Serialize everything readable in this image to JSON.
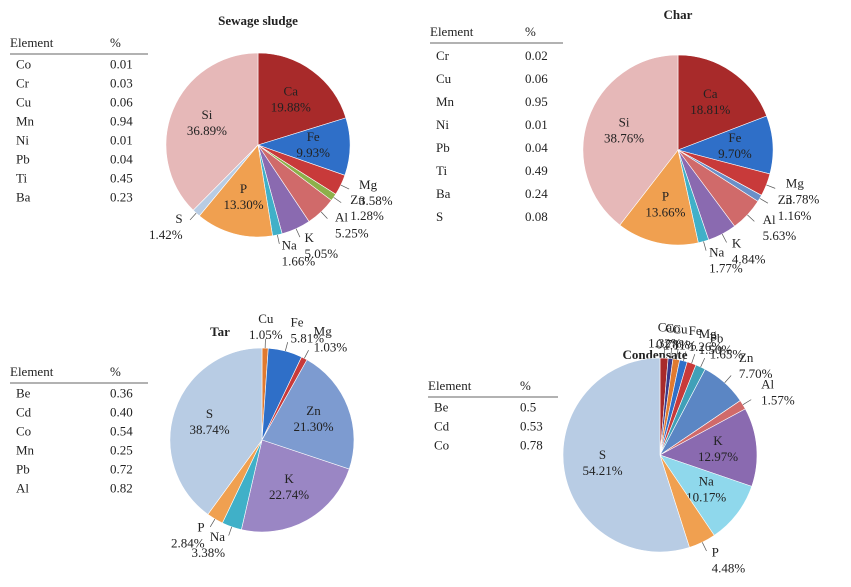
{
  "chart_data": [
    {
      "type": "pie",
      "title": "Sewage sludge",
      "categories": [
        "Ca",
        "Fe",
        "Mg",
        "Zn",
        "Al",
        "K",
        "Na",
        "P",
        "S",
        "Si"
      ],
      "values": [
        19.88,
        9.93,
        3.58,
        1.28,
        5.25,
        5.05,
        1.66,
        13.3,
        1.42,
        36.89
      ],
      "value_labels": [
        "19.88%",
        "9.93%",
        "3.58%",
        "1.28%",
        "5.25%",
        "5.05%",
        "1.66%",
        "13.30%",
        "1.42%",
        "36.89%"
      ],
      "colors": [
        "#a82a2a",
        "#2f6fc8",
        "#c83a3a",
        "#8db04a",
        "#d06a6a",
        "#8a6ab0",
        "#40b0c8",
        "#f0a050",
        "#b8cce4",
        "#e6b8b8"
      ],
      "table": {
        "header": [
          "Element",
          "%"
        ],
        "rows": [
          [
            "Co",
            "0.01"
          ],
          [
            "Cr",
            "0.03"
          ],
          [
            "Cu",
            "0.06"
          ],
          [
            "Mn",
            "0.94"
          ],
          [
            "Ni",
            "0.01"
          ],
          [
            "Pb",
            "0.04"
          ],
          [
            "Ti",
            "0.45"
          ],
          [
            "Ba",
            "0.23"
          ]
        ]
      }
    },
    {
      "type": "pie",
      "title": "Char",
      "categories": [
        "Ca",
        "Fe",
        "Mg",
        "Zn",
        "Al",
        "K",
        "Na",
        "P",
        "Si"
      ],
      "values": [
        18.81,
        9.7,
        3.78,
        1.16,
        5.63,
        4.84,
        1.77,
        13.66,
        38.76
      ],
      "value_labels": [
        "18.81%",
        "9.70%",
        "3.78%",
        "1.16%",
        "5.63%",
        "4.84%",
        "1.77%",
        "13.66%",
        "38.76%"
      ],
      "colors": [
        "#a82a2a",
        "#2f6fc8",
        "#c83a3a",
        "#6a8fc8",
        "#d06a6a",
        "#8a6ab0",
        "#40b0c8",
        "#f0a050",
        "#e6b8b8"
      ],
      "table": {
        "header": [
          "Element",
          "%"
        ],
        "rows": [
          [
            "Cr",
            "0.02"
          ],
          [
            "Cu",
            "0.06"
          ],
          [
            "Mn",
            "0.95"
          ],
          [
            "Ni",
            "0.01"
          ],
          [
            "Pb",
            "0.04"
          ],
          [
            "Ti",
            "0.49"
          ],
          [
            "Ba",
            "0.24"
          ],
          [
            "S",
            "0.08"
          ]
        ]
      }
    },
    {
      "type": "pie",
      "title": "Tar",
      "categories": [
        "Cu",
        "Fe",
        "Mg",
        "Zn",
        "K",
        "Na",
        "P",
        "S"
      ],
      "values": [
        1.05,
        5.81,
        1.03,
        21.3,
        22.74,
        3.38,
        2.84,
        38.74
      ],
      "value_labels": [
        "1.05%",
        "5.81%",
        "1.03%",
        "21.30%",
        "22.74%",
        "3.38%",
        "2.84%",
        "38.74%"
      ],
      "colors": [
        "#e07a30",
        "#2f6fc8",
        "#c83a3a",
        "#7d9bd0",
        "#9a86c4",
        "#40b0c8",
        "#f0a050",
        "#b8cce4"
      ],
      "table": {
        "header": [
          "Element",
          "%"
        ],
        "rows": [
          [
            "Be",
            "0.36"
          ],
          [
            "Cd",
            "0.40"
          ],
          [
            "Co",
            "0.54"
          ],
          [
            "Mn",
            "0.25"
          ],
          [
            "Pb",
            "0.72"
          ],
          [
            "Al",
            "0.82"
          ]
        ]
      }
    },
    {
      "type": "pie",
      "title": "Condensate",
      "categories": [
        "Ca",
        "Co",
        "Cu",
        "Fe",
        "Mg",
        "Pb",
        "Zn",
        "Al",
        "K",
        "Na",
        "P",
        "S"
      ],
      "values": [
        1.32,
        0.78,
        1.11,
        1.26,
        1.5,
        1.65,
        7.7,
        1.57,
        12.97,
        10.17,
        4.48,
        54.21
      ],
      "value_labels": [
        "1.32%",
        "0.78%",
        "1.11%",
        "1.26%",
        "1.50%",
        "1.65%",
        "7.70%",
        "1.57%",
        "12.97%",
        "10.17%",
        "4.48%",
        "54.21%"
      ],
      "colors": [
        "#a82a2a",
        "#3a3a8a",
        "#e07a30",
        "#2f6fc8",
        "#c83a3a",
        "#40a0b8",
        "#5b86c4",
        "#d06a6a",
        "#8a6ab0",
        "#8fd8ec",
        "#f0a050",
        "#b8cce4"
      ],
      "table": {
        "header": [
          "Element",
          "%"
        ],
        "rows": [
          [
            "Be",
            "0.5"
          ],
          [
            "Cd",
            "0.53"
          ],
          [
            "Co",
            "0.78"
          ]
        ]
      }
    }
  ]
}
